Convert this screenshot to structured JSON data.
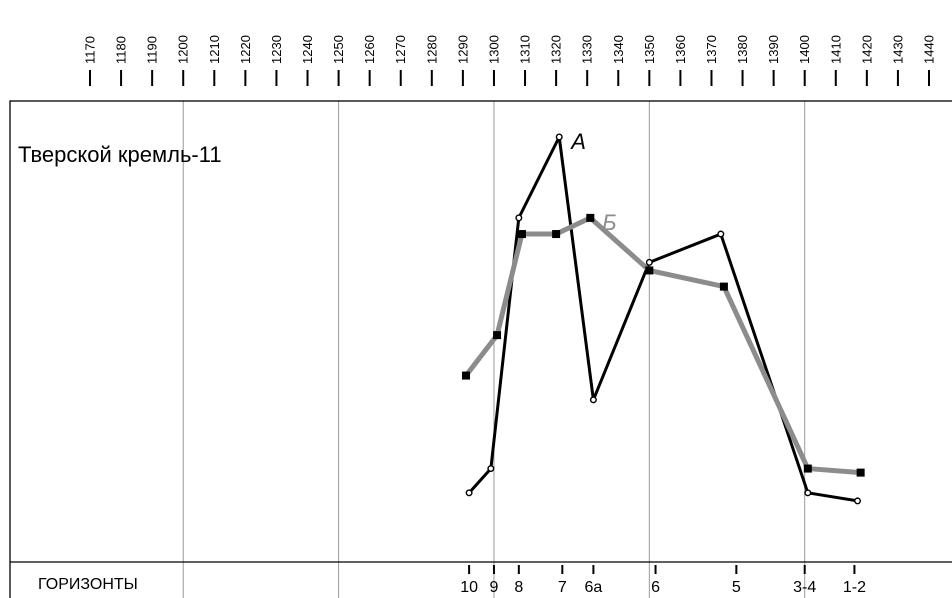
{
  "chart_data": {
    "type": "line",
    "title": "Тверской кремль-11",
    "x_axis_years": [
      "1170",
      "1180",
      "1190",
      "1200",
      "1210",
      "1220",
      "1230",
      "1240",
      "1250",
      "1260",
      "1270",
      "1280",
      "1290",
      "1300",
      "1310",
      "1320",
      "1330",
      "1340",
      "1350",
      "1360",
      "1370",
      "1380",
      "1390",
      "1400",
      "1410",
      "1420",
      "1430",
      "1440"
    ],
    "gridlines_years": [
      1200,
      1250,
      1300,
      1350,
      1400
    ],
    "horizons_label": "ГОРИЗОНТЫ",
    "horizons": [
      {
        "label": "10",
        "year": 1292
      },
      {
        "label": "9",
        "year": 1300
      },
      {
        "label": "8",
        "year": 1308
      },
      {
        "label": "7",
        "year": 1322
      },
      {
        "label": "6а",
        "year": 1332
      },
      {
        "label": "6",
        "year": 1352
      },
      {
        "label": "5",
        "year": 1378
      },
      {
        "label": "3-4",
        "year": 1400
      },
      {
        "label": "1-2",
        "year": 1416
      }
    ],
    "y_range": [
      0,
      100
    ],
    "series": [
      {
        "name": "А",
        "color": "#000000",
        "marker": "open-circle",
        "points": [
          [
            1292,
            4
          ],
          [
            1299,
            10
          ],
          [
            1308,
            72
          ],
          [
            1321,
            92
          ],
          [
            1332,
            27
          ],
          [
            1350,
            61
          ],
          [
            1373,
            68
          ],
          [
            1401,
            4
          ],
          [
            1417,
            2
          ]
        ]
      },
      {
        "name": "Б",
        "color": "#8c8c8c",
        "marker": "filled-square",
        "points": [
          [
            1291,
            33
          ],
          [
            1301,
            43
          ],
          [
            1309,
            68
          ],
          [
            1320,
            68
          ],
          [
            1331,
            72
          ],
          [
            1350,
            59
          ],
          [
            1374,
            55
          ],
          [
            1401,
            10
          ],
          [
            1418,
            9
          ]
        ]
      }
    ]
  }
}
